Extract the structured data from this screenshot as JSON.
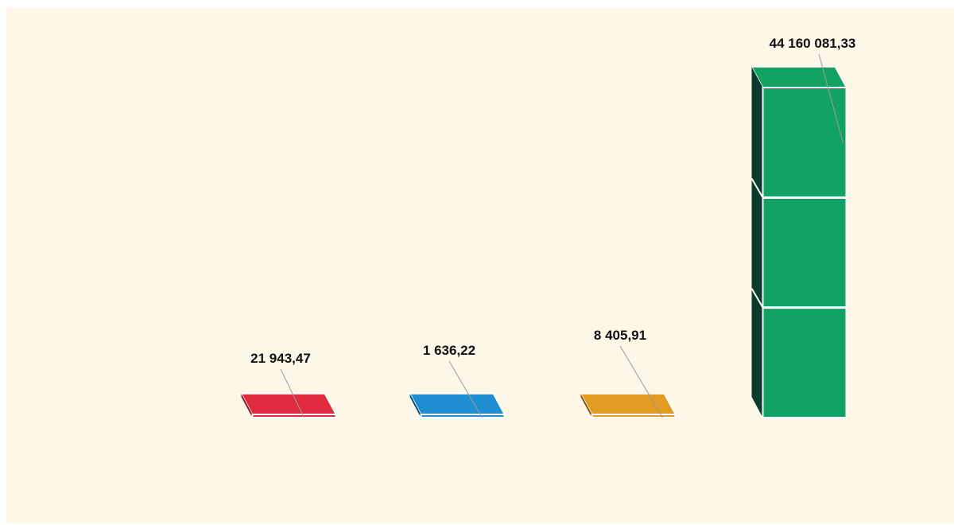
{
  "chart_data": {
    "type": "bar",
    "title": "",
    "xlabel": "",
    "ylabel": "",
    "categories": [
      "",
      "",
      "",
      ""
    ],
    "values": [
      21943.47,
      1636.22,
      8405.91,
      44160081.33
    ],
    "data_labels": [
      "21 943,47",
      "1 636,22",
      "8 405,91",
      "44 160 081,33"
    ],
    "colors": [
      "#e02b3f",
      "#1f8fd1",
      "#e39c22",
      "#12a364"
    ],
    "side_colors": [
      "#7a1520",
      "#0e4a6e",
      "#7a5210",
      "#0c3a2c"
    ],
    "bar_style": "3d",
    "grid": false,
    "legend": "none"
  }
}
